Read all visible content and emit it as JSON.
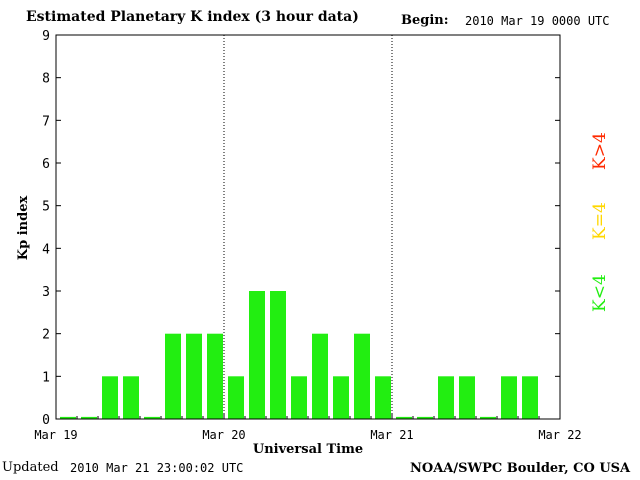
{
  "header": {
    "title": "Estimated Planetary K index (3 hour data)",
    "begin_label": "Begin:",
    "begin_value": "2010 Mar 19 0000 UTC"
  },
  "footer": {
    "updated_label": "Updated",
    "updated_value": "2010 Mar 21 23:00:02 UTC",
    "credit": "NOAA/SWPC Boulder, CO USA"
  },
  "legend": [
    {
      "label": "K>4",
      "color": "#ff2a00"
    },
    {
      "label": "K=4",
      "color": "#ffd700"
    },
    {
      "label": "K<4",
      "color": "#22ee11"
    }
  ],
  "chart_data": {
    "type": "bar",
    "title": "Estimated Planetary K index (3 hour data)",
    "xlabel": "Universal Time",
    "ylabel": "Kp index",
    "ylim": [
      0,
      9
    ],
    "yticks": [
      0,
      1,
      2,
      3,
      4,
      5,
      6,
      7,
      8,
      9
    ],
    "xticks": [
      "Mar 19",
      "Mar 20",
      "Mar 21",
      "Mar 22"
    ],
    "bar_color": "#22ee11",
    "day_separators": [
      "Mar 20",
      "Mar 21"
    ],
    "series": [
      {
        "values": [
          0.05,
          0.05,
          1,
          1,
          0.05,
          2,
          2,
          2,
          1,
          3,
          3,
          1,
          2,
          1,
          2,
          1,
          0.05,
          0.05,
          1,
          1,
          0.05,
          1,
          1
        ]
      }
    ]
  }
}
